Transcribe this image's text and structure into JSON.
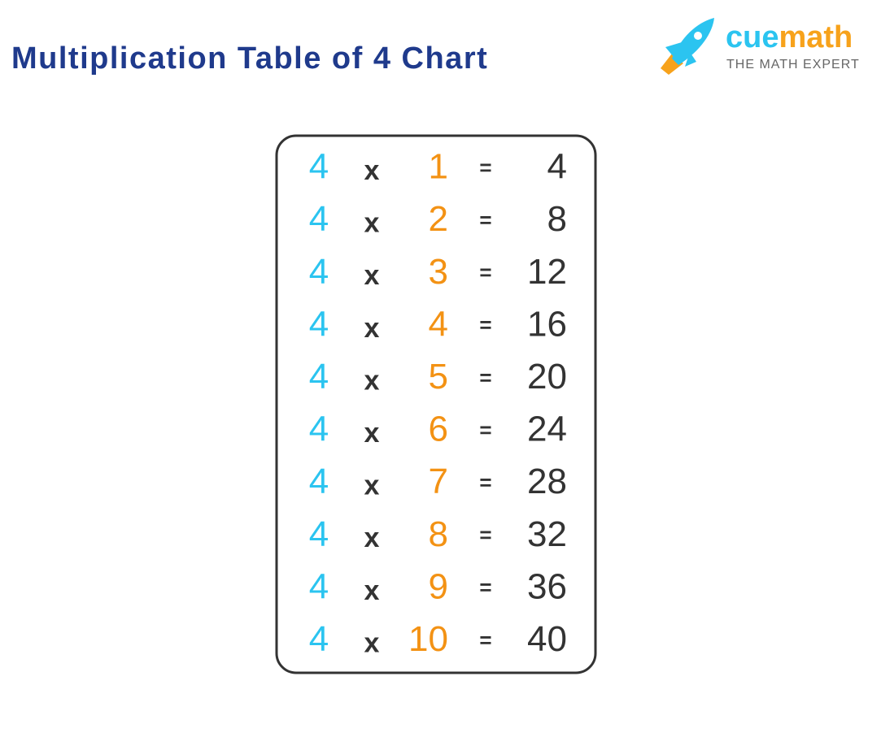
{
  "header": {
    "title": "Multiplication Table of 4 Chart",
    "logo": {
      "brand_a": "cue",
      "brand_b": "math",
      "tagline": "THE MATH EXPERT"
    }
  },
  "table": {
    "rows": [
      [
        4,
        "x",
        1,
        "=",
        4
      ],
      [
        4,
        "x",
        2,
        "=",
        8
      ],
      [
        4,
        "x",
        3,
        "=",
        12
      ],
      [
        4,
        "x",
        4,
        "=",
        16
      ],
      [
        4,
        "x",
        5,
        "=",
        20
      ],
      [
        4,
        "x",
        6,
        "=",
        24
      ],
      [
        4,
        "x",
        7,
        "=",
        28
      ],
      [
        4,
        "x",
        8,
        "=",
        32
      ],
      [
        4,
        "x",
        9,
        "=",
        36
      ],
      [
        4,
        "x",
        10,
        "=",
        40
      ]
    ]
  }
}
